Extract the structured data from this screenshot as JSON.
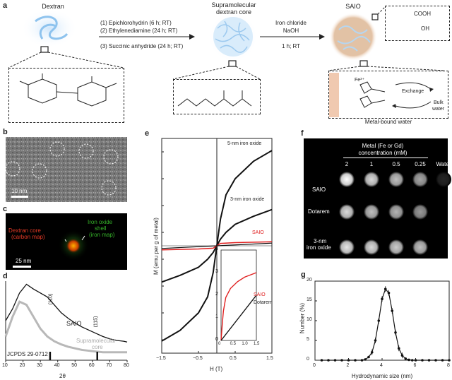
{
  "panel_a": {
    "label": "a",
    "dextran_title": "Dextran",
    "core_title_1": "Supramolecular",
    "core_title_2": "dextran core",
    "saio_title": "SAIO",
    "steps_1": "(1) Epichlorohydrin (6 h; RT)",
    "steps_2": "(2) Ethylenediamine (24 h; RT)",
    "steps_3": "(3) Succinic anhydride (24 h; RT)",
    "iron_1": "Iron chloride",
    "iron_2": "NaOH",
    "iron_3": "1 h; RT",
    "cooh": "COOH",
    "oh": "OH",
    "exchange": "Exchange",
    "bulk": "Bulk",
    "water": "water",
    "metal_bound": "Metal-bound water",
    "fe3plus": "Fe³⁺"
  },
  "panel_b": {
    "label": "b",
    "scale": "10 nm"
  },
  "panel_c": {
    "label": "c",
    "dextran_core_1": "Dextran core",
    "dextran_core_2": "(carbon map)",
    "shell_1": "Iron oxide",
    "shell_2": "shell",
    "shell_3": "(iron map)",
    "scale": "25 nm"
  },
  "panel_d": {
    "label": "d",
    "saio": "SAIO",
    "supra_1": "Supramolecular",
    "supra_2": "core",
    "jcpds": "JCPDS 29-0712",
    "peak_110": "(110)",
    "peak_115": "(115)",
    "xlabel": "2θ",
    "xticks": [
      "10",
      "20",
      "30",
      "40",
      "50",
      "60",
      "70",
      "80"
    ]
  },
  "panel_e": {
    "label": "e",
    "ylabel": "M (emu per g of metal)",
    "xlabel": "H (T)",
    "xticks": [
      "−1.5",
      "−0.5",
      "0.5",
      "1.5"
    ],
    "yticks": [
      "70",
      "50",
      "30",
      "10",
      "−10",
      "−30",
      "−50",
      "−70"
    ],
    "iron5": "5-nm iron oxide",
    "iron3": "3-nm iron oxide",
    "saio": "SAIO",
    "inset_saio": "SAIO",
    "inset_dotarem": "Dotarem",
    "inset_yticks": [
      "4",
      "3",
      "2",
      "1",
      "0"
    ],
    "inset_xticks": [
      "0",
      "0.5",
      "1.0",
      "1.5"
    ]
  },
  "panel_f": {
    "label": "f",
    "header_1": "Metal (Fe or Gd)",
    "header_2": "concentration (mM)",
    "cols": [
      "2",
      "1",
      "0.5",
      "0.25",
      "Water"
    ],
    "rows": [
      "SAIO",
      "Dotarem",
      "3-nm",
      "iron oxide"
    ]
  },
  "panel_g": {
    "label": "g",
    "ylabel": "Number (%)",
    "xlabel": "Hydrodynamic size (nm)",
    "xticks": [
      "0",
      "2",
      "4",
      "6",
      "8"
    ],
    "yticks": [
      "20",
      "15",
      "10",
      "5",
      "0"
    ]
  },
  "chart_data": [
    {
      "panel": "d",
      "type": "line",
      "xlabel": "2θ",
      "xlim": [
        10,
        80
      ],
      "series": [
        {
          "name": "SAIO",
          "x": [
            10,
            14,
            18,
            22,
            26,
            30,
            34,
            38,
            42,
            46,
            50,
            54,
            58,
            62,
            66,
            70,
            74,
            78,
            80
          ],
          "y": [
            0.5,
            0.65,
            0.85,
            0.96,
            0.9,
            0.85,
            0.8,
            0.7,
            0.6,
            0.53,
            0.47,
            0.42,
            0.38,
            0.34,
            0.3,
            0.27,
            0.25,
            0.24,
            0.23
          ]
        },
        {
          "name": "Supramolecular core",
          "x": [
            10,
            14,
            18,
            22,
            26,
            30,
            34,
            38,
            42,
            46,
            50,
            54,
            58,
            62,
            66,
            70,
            74,
            78,
            80
          ],
          "y": [
            0.3,
            0.55,
            0.74,
            0.7,
            0.55,
            0.4,
            0.3,
            0.24,
            0.2,
            0.17,
            0.15,
            0.13,
            0.12,
            0.11,
            0.1,
            0.1,
            0.1,
            0.1,
            0.1
          ]
        }
      ],
      "reference_ticks_2theta": [
        35.5,
        62.7
      ]
    },
    {
      "panel": "e",
      "type": "line",
      "xlabel": "H (T)",
      "ylabel": "M (emu per g of metal)",
      "xlim": [
        -1.5,
        1.5
      ],
      "ylim": [
        -80,
        80
      ],
      "series": [
        {
          "name": "5-nm iron oxide",
          "x": [
            -1.5,
            -1.0,
            -0.5,
            -0.25,
            -0.1,
            0,
            0.1,
            0.25,
            0.5,
            1.0,
            1.5
          ],
          "y": [
            -71,
            -63,
            -50,
            -38,
            -20,
            0,
            20,
            38,
            50,
            63,
            71
          ]
        },
        {
          "name": "3-nm iron oxide",
          "x": [
            -1.5,
            -1.0,
            -0.5,
            -0.25,
            -0.1,
            0,
            0.1,
            0.25,
            0.5,
            1.0,
            1.5
          ],
          "y": [
            -27,
            -22,
            -16,
            -10,
            -5,
            0,
            5,
            10,
            16,
            22,
            27
          ]
        },
        {
          "name": "SAIO",
          "x": [
            -1.5,
            -0.5,
            -0.1,
            0,
            0.1,
            0.5,
            1.5
          ],
          "y": [
            -3,
            -2.4,
            -1.8,
            0,
            1.8,
            2.4,
            3
          ]
        },
        {
          "name": "Dotarem",
          "x": [
            -1.5,
            0,
            1.5
          ],
          "y": [
            -2,
            0,
            2
          ]
        }
      ],
      "inset": {
        "xlim": [
          0,
          1.5
        ],
        "ylim": [
          0,
          4
        ],
        "series": [
          {
            "name": "SAIO",
            "x": [
              0,
              0.05,
              0.1,
              0.2,
              0.4,
              0.7,
              1.0,
              1.5
            ],
            "y": [
              0,
              0.7,
              1.3,
              1.9,
              2.3,
              2.6,
              2.8,
              3.0
            ]
          },
          {
            "name": "Dotarem",
            "x": [
              0,
              1.5
            ],
            "y": [
              0,
              2.0
            ]
          }
        ]
      }
    },
    {
      "panel": "g",
      "type": "line",
      "xlabel": "Hydrodynamic size (nm)",
      "ylabel": "Number (%)",
      "xlim": [
        0,
        8
      ],
      "ylim": [
        0,
        20
      ],
      "x": [
        0.4,
        0.8,
        1.2,
        1.6,
        2.0,
        2.4,
        2.8,
        3.0,
        3.2,
        3.4,
        3.6,
        3.8,
        4.0,
        4.2,
        4.4,
        4.6,
        4.8,
        5.0,
        5.2,
        5.4,
        5.6,
        5.8,
        6.0,
        6.4,
        6.8,
        7.2,
        7.6,
        8.0
      ],
      "y": [
        0,
        0,
        0,
        0,
        0,
        0,
        0,
        0.2,
        0.8,
        2,
        5,
        10,
        15.5,
        18,
        17,
        12.5,
        7,
        3,
        1.2,
        0.4,
        0.1,
        0,
        0,
        0,
        0,
        0,
        0,
        0
      ]
    }
  ]
}
